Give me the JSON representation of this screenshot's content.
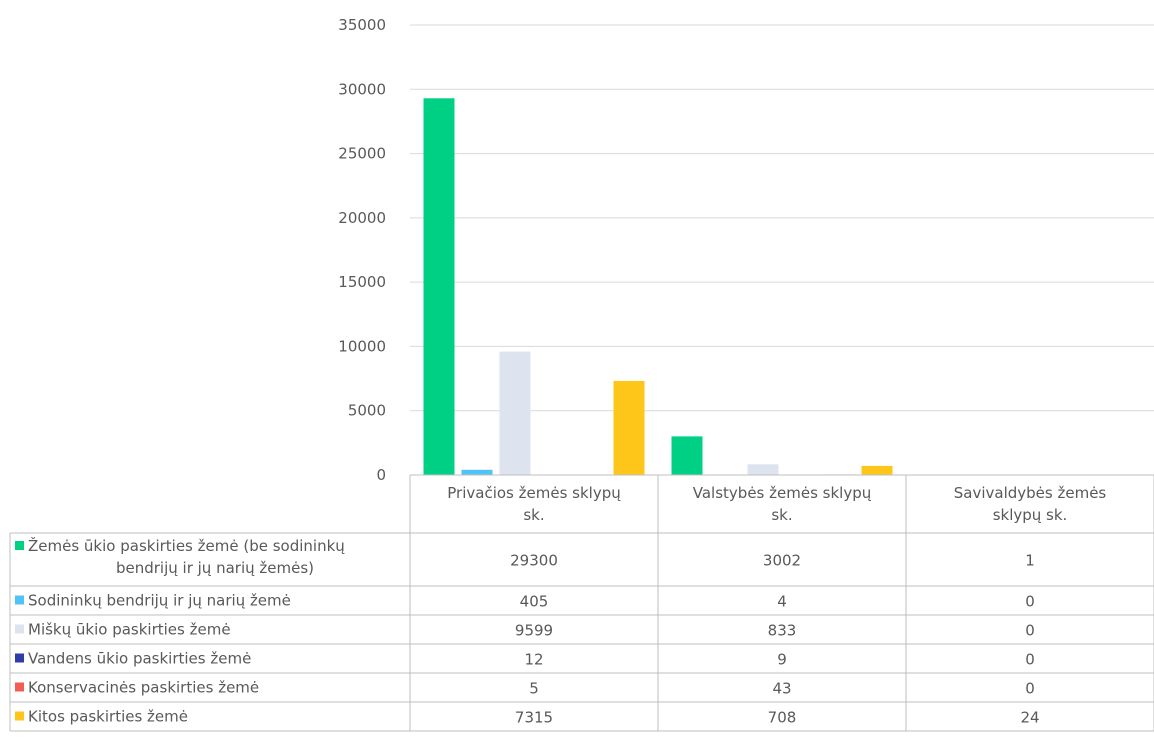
{
  "chart_data": {
    "type": "bar",
    "categories": [
      [
        "Privačios žemės sklypų",
        "sk."
      ],
      [
        "Valstybės žemės sklypų",
        "sk."
      ],
      [
        "Savivaldybės žemės",
        "sklypų sk."
      ]
    ],
    "series": [
      {
        "name": [
          "Žemės ūkio paskirties žemė (be sodininkų",
          "bendrijų ir jų narių žemės)"
        ],
        "color": "#00d084",
        "values": [
          29300,
          3002,
          1
        ]
      },
      {
        "name": [
          "Sodininkų bendrijų ir jų narių žemė"
        ],
        "color": "#4fc3f7",
        "values": [
          405,
          4,
          0
        ]
      },
      {
        "name": [
          "Miškų ūkio paskirties žemė"
        ],
        "color": "#dde4ef",
        "values": [
          9599,
          833,
          0
        ]
      },
      {
        "name": [
          "Vandens ūkio paskirties žemė"
        ],
        "color": "#2e3ea6",
        "values": [
          12,
          9,
          0
        ]
      },
      {
        "name": [
          "Konservacinės paskirties žemė"
        ],
        "color": "#f25c54",
        "values": [
          5,
          43,
          0
        ]
      },
      {
        "name": [
          "Kitos paskirties žemė"
        ],
        "color": "#ffc61a",
        "values": [
          7315,
          708,
          24
        ]
      }
    ],
    "ylim": [
      0,
      35000
    ],
    "yticks": [
      0,
      5000,
      10000,
      15000,
      20000,
      25000,
      30000,
      35000
    ],
    "grid": true,
    "legend": "data-table",
    "title": "",
    "xlabel": "",
    "ylabel": ""
  }
}
